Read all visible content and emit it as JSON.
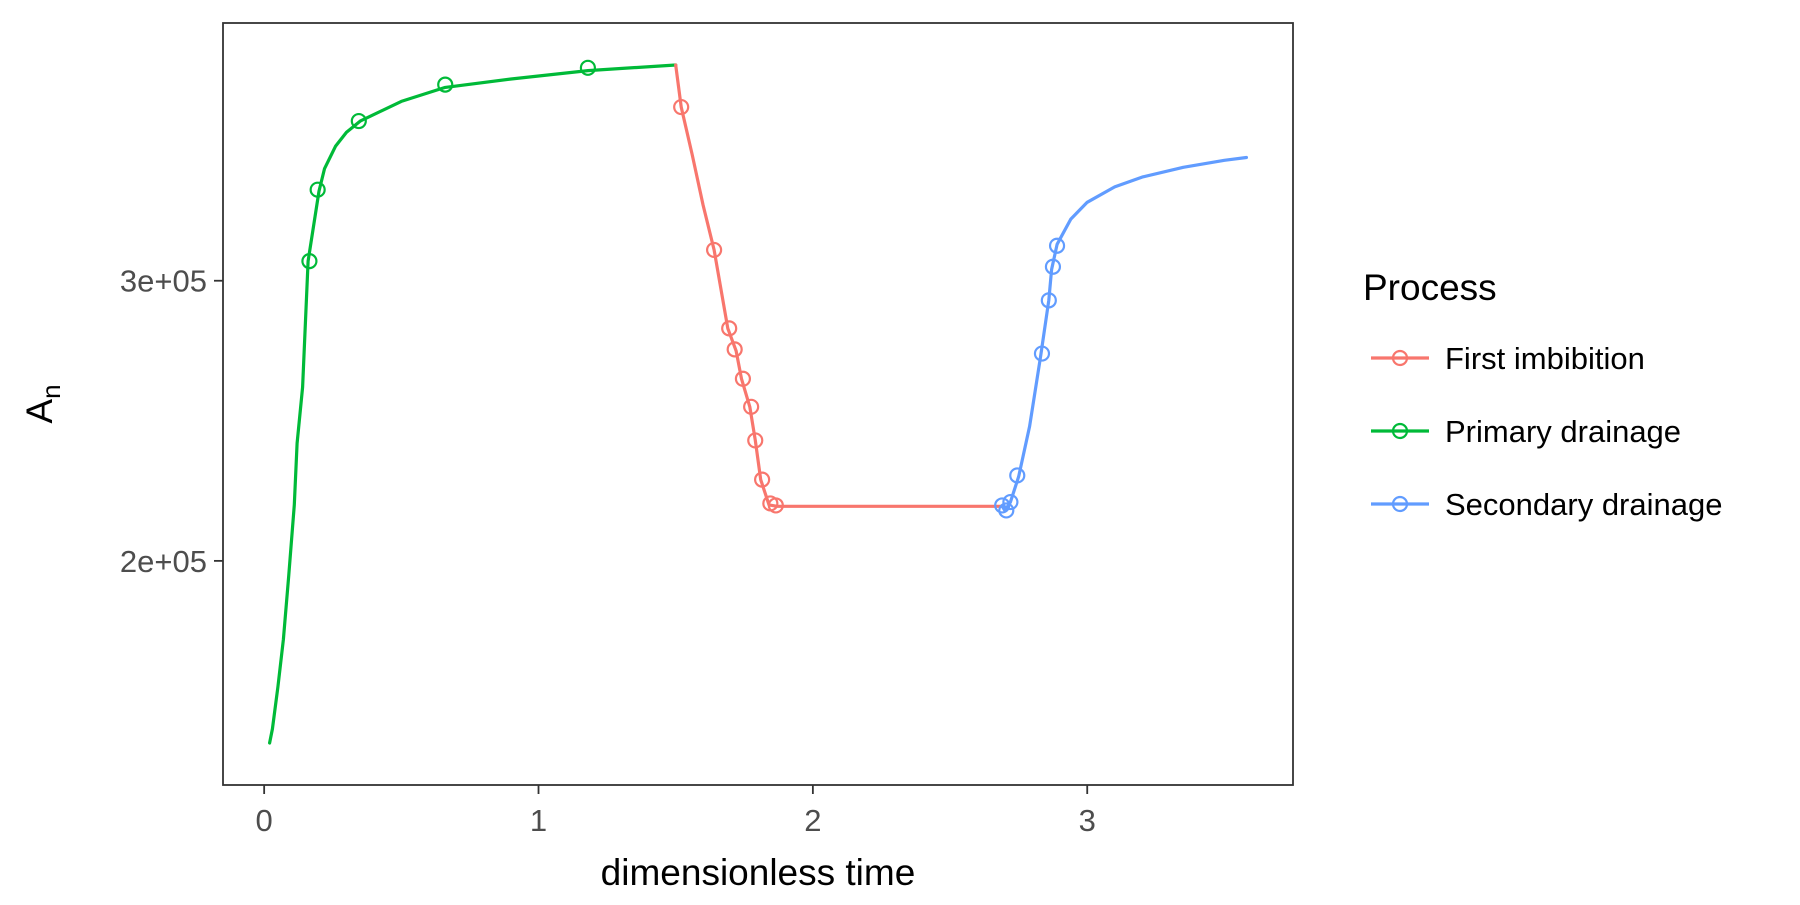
{
  "chart_data": {
    "type": "line",
    "xlabel": "dimensionless time",
    "ylabel_main": "A",
    "ylabel_sub": "n",
    "xlim": [
      -0.15,
      3.75
    ],
    "ylim": [
      120000,
      392000
    ],
    "x_ticks": [
      0,
      1,
      2,
      3
    ],
    "x_tick_labels": [
      "0",
      "1",
      "2",
      "3"
    ],
    "y_ticks": [
      200000,
      300000
    ],
    "y_tick_labels": [
      "2e+05",
      "3e+05"
    ],
    "grid": false,
    "legend": {
      "title": "Process",
      "position": "right",
      "entries": [
        {
          "name": "First imbibition",
          "color": "#F8766D"
        },
        {
          "name": "Primary drainage",
          "color": "#00BA38"
        },
        {
          "name": "Secondary drainage",
          "color": "#619CFF"
        }
      ]
    },
    "series": [
      {
        "name": "Primary drainage",
        "color": "#00BA38",
        "line": [
          [
            0.02,
            135000
          ],
          [
            0.03,
            140000
          ],
          [
            0.05,
            155000
          ],
          [
            0.07,
            172000
          ],
          [
            0.09,
            195000
          ],
          [
            0.11,
            220000
          ],
          [
            0.12,
            242000
          ],
          [
            0.14,
            262000
          ],
          [
            0.16,
            307000
          ],
          [
            0.2,
            332000
          ],
          [
            0.22,
            340000
          ],
          [
            0.26,
            348000
          ],
          [
            0.3,
            353000
          ],
          [
            0.35,
            357000
          ],
          [
            0.5,
            364000
          ],
          [
            0.66,
            369000
          ],
          [
            0.9,
            372000
          ],
          [
            1.18,
            375000
          ],
          [
            1.5,
            377000
          ]
        ],
        "points": [
          [
            0.165,
            307000
          ],
          [
            0.195,
            332500
          ],
          [
            0.345,
            357000
          ],
          [
            0.66,
            370000
          ],
          [
            1.18,
            376000
          ]
        ]
      },
      {
        "name": "First imbibition",
        "color": "#F8766D",
        "line": [
          [
            1.5,
            377000
          ],
          [
            1.52,
            362000
          ],
          [
            1.56,
            345000
          ],
          [
            1.6,
            327000
          ],
          [
            1.64,
            311000
          ],
          [
            1.69,
            283000
          ],
          [
            1.72,
            275000
          ],
          [
            1.74,
            265000
          ],
          [
            1.77,
            255000
          ],
          [
            1.79,
            243000
          ],
          [
            1.81,
            229000
          ],
          [
            1.84,
            220000
          ],
          [
            1.87,
            219500
          ],
          [
            2.2,
            219500
          ],
          [
            2.5,
            219500
          ],
          [
            2.69,
            219500
          ]
        ],
        "points": [
          [
            1.52,
            362000
          ],
          [
            1.64,
            311000
          ],
          [
            1.695,
            283000
          ],
          [
            1.715,
            275500
          ],
          [
            1.745,
            265000
          ],
          [
            1.775,
            255000
          ],
          [
            1.79,
            243000
          ],
          [
            1.815,
            229000
          ],
          [
            1.845,
            220500
          ],
          [
            1.865,
            219800
          ]
        ]
      },
      {
        "name": "Secondary drainage",
        "color": "#619CFF",
        "line": [
          [
            2.69,
            219500
          ],
          [
            2.7,
            218000
          ],
          [
            2.72,
            221000
          ],
          [
            2.75,
            230000
          ],
          [
            2.79,
            248000
          ],
          [
            2.83,
            273000
          ],
          [
            2.86,
            293000
          ],
          [
            2.87,
            304000
          ],
          [
            2.89,
            313000
          ],
          [
            2.94,
            322000
          ],
          [
            3.0,
            328000
          ],
          [
            3.1,
            333500
          ],
          [
            3.2,
            337000
          ],
          [
            3.35,
            340500
          ],
          [
            3.5,
            343000
          ],
          [
            3.58,
            344000
          ]
        ],
        "points": [
          [
            2.69,
            219800
          ],
          [
            2.705,
            218000
          ],
          [
            2.72,
            221000
          ],
          [
            2.745,
            230500
          ],
          [
            2.835,
            274000
          ],
          [
            2.86,
            293000
          ],
          [
            2.875,
            305000
          ],
          [
            2.89,
            312500
          ]
        ]
      }
    ]
  }
}
